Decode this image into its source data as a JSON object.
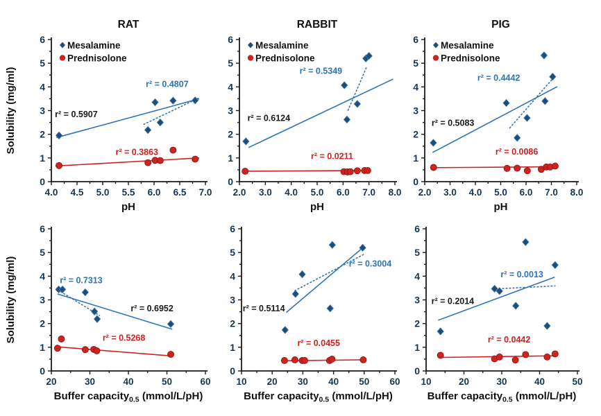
{
  "figure": {
    "background": "#ffffff",
    "axis_color": "#1a1a1a",
    "tick_label_color": "#17344e",
    "blue_line_color": "#2e75b6",
    "blue_marker_color": "#1d4e79",
    "red_line_color": "#cf2020",
    "red_marker_color": "#ce2420",
    "legend_items": [
      "Mesalamine",
      "Prednisolone"
    ],
    "row_ylabel": "Solubility (mg/ml)"
  },
  "chart_data": [
    {
      "type": "scatter",
      "title": "RAT",
      "xlabel": {
        "pre": "pH",
        "sub": "",
        "post": ""
      },
      "ylabel": "Solubility (mg/ml)",
      "xlim": [
        4.0,
        7.0
      ],
      "xtick_step": 0.5,
      "xminor_step": 0.25,
      "xtick_decimals": 1,
      "ylim": [
        0,
        6
      ],
      "ytick_step": 1,
      "yminor_step": 0.5,
      "legend": true,
      "grid": false,
      "series": [
        {
          "name": "Mesalamine",
          "marker": "diamond",
          "color": "#1d4e79",
          "points": [
            [
              4.15,
              1.95
            ],
            [
              5.88,
              2.18
            ],
            [
              6.02,
              3.35
            ],
            [
              6.12,
              2.5
            ],
            [
              6.37,
              3.42
            ],
            [
              6.8,
              3.43
            ]
          ]
        },
        {
          "name": "Prednisolone",
          "marker": "circle",
          "color": "#ce2420",
          "points": [
            [
              4.15,
              0.68
            ],
            [
              5.88,
              0.8
            ],
            [
              6.02,
              0.9
            ],
            [
              6.12,
              0.89
            ],
            [
              6.37,
              1.33
            ],
            [
              6.8,
              0.95
            ]
          ]
        }
      ],
      "trendlines": [
        {
          "label": "r² = 0.5907",
          "style": "solid",
          "color": "#2e75b6",
          "x1": 4.1,
          "y1": 1.86,
          "x2": 6.88,
          "y2": 3.5,
          "label_color": "#1a1a1a",
          "label_x": 4.07,
          "label_y": 2.72
        },
        {
          "label": "r² = 0.4807",
          "style": "dotted",
          "color": "#2e75b6",
          "x1": 5.8,
          "y1": 2.42,
          "x2": 6.86,
          "y2": 3.52,
          "label_color": "#2e75b6",
          "label_x": 5.84,
          "label_y": 4.0
        },
        {
          "label": "r² = 0.3863",
          "style": "solid",
          "color": "#cf2020",
          "x1": 4.08,
          "y1": 0.66,
          "x2": 6.88,
          "y2": 1.0,
          "label_color": "#cf2020",
          "label_x": 5.25,
          "label_y": 1.12
        }
      ]
    },
    {
      "type": "scatter",
      "title": "RABBIT",
      "xlabel": {
        "pre": "pH",
        "sub": "",
        "post": ""
      },
      "ylabel": "",
      "xlim": [
        2.0,
        8.0
      ],
      "xtick_step": 1.0,
      "xminor_step": 0.5,
      "xtick_decimals": 1,
      "ylim": [
        0,
        6
      ],
      "ytick_step": 1,
      "yminor_step": 0.5,
      "legend": true,
      "grid": false,
      "series": [
        {
          "name": "Mesalamine",
          "marker": "diamond",
          "color": "#1d4e79",
          "points": [
            [
              2.25,
              1.7
            ],
            [
              6.05,
              4.07
            ],
            [
              6.15,
              2.62
            ],
            [
              6.55,
              3.28
            ],
            [
              6.88,
              5.2
            ],
            [
              7.0,
              5.31
            ]
          ]
        },
        {
          "name": "Prednisolone",
          "marker": "circle",
          "color": "#ce2420",
          "points": [
            [
              2.22,
              0.44
            ],
            [
              6.03,
              0.42
            ],
            [
              6.17,
              0.41
            ],
            [
              6.28,
              0.42
            ],
            [
              6.55,
              0.46
            ],
            [
              6.83,
              0.47
            ],
            [
              6.95,
              0.47
            ]
          ]
        }
      ],
      "trendlines": [
        {
          "label": "r² = 0.6124",
          "style": "solid",
          "color": "#2e75b6",
          "x1": 2.35,
          "y1": 1.44,
          "x2": 7.93,
          "y2": 4.33,
          "label_color": "#1a1a1a",
          "label_x": 2.31,
          "label_y": 2.56
        },
        {
          "label": "r² = 0.5349",
          "style": "dotted",
          "color": "#2e75b6",
          "x1": 6.19,
          "y1": 3.01,
          "x2": 6.93,
          "y2": 4.89,
          "label_color": "#2e75b6",
          "label_x": 4.32,
          "label_y": 4.55
        },
        {
          "label": "r² = 0.0211",
          "style": "solid",
          "color": "#cf2020",
          "x1": 2.22,
          "y1": 0.44,
          "x2": 7.0,
          "y2": 0.47,
          "label_color": "#cf2020",
          "label_x": 4.76,
          "label_y": 0.95
        }
      ]
    },
    {
      "type": "scatter",
      "title": "PIG",
      "xlabel": {
        "pre": "pH",
        "sub": "",
        "post": ""
      },
      "ylabel": "",
      "xlim": [
        2.0,
        8.0
      ],
      "xtick_step": 1.0,
      "xminor_step": 0.5,
      "xtick_decimals": 1,
      "ylim": [
        0,
        6
      ],
      "ytick_step": 1,
      "yminor_step": 0.5,
      "legend": true,
      "grid": false,
      "series": [
        {
          "name": "Mesalamine",
          "marker": "diamond",
          "color": "#1d4e79",
          "points": [
            [
              2.34,
              1.64
            ],
            [
              5.22,
              3.32
            ],
            [
              5.65,
              1.85
            ],
            [
              6.04,
              2.69
            ],
            [
              6.71,
              5.33
            ],
            [
              6.75,
              3.4
            ],
            [
              7.05,
              4.43
            ]
          ]
        },
        {
          "name": "Prednisolone",
          "marker": "circle",
          "color": "#ce2420",
          "points": [
            [
              2.35,
              0.6
            ],
            [
              5.25,
              0.56
            ],
            [
              5.65,
              0.57
            ],
            [
              6.05,
              0.46
            ],
            [
              6.6,
              0.52
            ],
            [
              6.8,
              0.62
            ],
            [
              6.95,
              0.62
            ],
            [
              7.15,
              0.66
            ]
          ]
        }
      ],
      "trendlines": [
        {
          "label": "r² = 0.5083",
          "style": "solid",
          "color": "#2e75b6",
          "x1": 2.31,
          "y1": 1.23,
          "x2": 7.23,
          "y2": 4.01,
          "label_color": "#1a1a1a",
          "label_x": 2.27,
          "label_y": 2.36
        },
        {
          "label": "r² = 0.4442",
          "style": "dotted",
          "color": "#2e75b6",
          "x1": 5.36,
          "y1": 2.27,
          "x2": 7.07,
          "y2": 4.37,
          "label_color": "#2e75b6",
          "label_x": 4.08,
          "label_y": 4.26
        },
        {
          "label": "r² = 0.0086",
          "style": "solid",
          "color": "#cf2020",
          "x1": 2.35,
          "y1": 0.59,
          "x2": 7.15,
          "y2": 0.63,
          "label_color": "#cf2020",
          "label_x": 4.79,
          "label_y": 1.14
        }
      ]
    },
    {
      "type": "scatter",
      "title": "",
      "xlabel": {
        "pre": "Buffer capacity",
        "sub": "0.5",
        "post": " (mmol/L/pH)"
      },
      "ylabel": "Solubility (mg/ml)",
      "xlim": [
        20,
        60
      ],
      "xtick_step": 10,
      "xminor_step": 5,
      "xtick_decimals": 0,
      "ylim": [
        0,
        6
      ],
      "ytick_step": 1,
      "yminor_step": 0.5,
      "legend": false,
      "grid": false,
      "series": [
        {
          "name": "Mesalamine",
          "marker": "diamond",
          "color": "#1d4e79",
          "points": [
            [
              21.9,
              3.44
            ],
            [
              22.9,
              3.44
            ],
            [
              28.8,
              3.32
            ],
            [
              31.2,
              2.51
            ],
            [
              31.9,
              2.19
            ],
            [
              51.0,
              1.98
            ]
          ]
        },
        {
          "name": "Prednisolone",
          "marker": "circle",
          "color": "#ce2420",
          "points": [
            [
              21.6,
              0.96
            ],
            [
              22.6,
              1.35
            ],
            [
              28.8,
              0.9
            ],
            [
              31.0,
              0.91
            ],
            [
              31.8,
              0.85
            ],
            [
              51.0,
              0.7
            ]
          ]
        }
      ],
      "trendlines": [
        {
          "label": "r² = 0.6952",
          "style": "solid",
          "color": "#2e75b6",
          "x1": 21.6,
          "y1": 3.25,
          "x2": 51.4,
          "y2": 1.76,
          "label_color": "#1a1a1a",
          "label_x": 40.6,
          "label_y": 2.52
        },
        {
          "label": "r² = 0.7313",
          "style": "dotted",
          "color": "#2e75b6",
          "x1": 21.7,
          "y1": 3.42,
          "x2": 32.5,
          "y2": 2.34,
          "label_color": "#2e75b6",
          "label_x": 22.2,
          "label_y": 3.7
        },
        {
          "label": "r² = 0.5268",
          "style": "solid",
          "color": "#cf2020",
          "x1": 21.4,
          "y1": 1.02,
          "x2": 51.4,
          "y2": 0.63,
          "label_color": "#cf2020",
          "label_x": 33.3,
          "label_y": 1.28
        }
      ]
    },
    {
      "type": "scatter",
      "title": "",
      "xlabel": {
        "pre": "Buffer capacity",
        "sub": "0.5",
        "post": " (mmol/L/pH)"
      },
      "ylabel": "",
      "xlim": [
        10,
        60
      ],
      "xtick_step": 10,
      "xminor_step": 5,
      "xtick_decimals": 0,
      "ylim": [
        0,
        6
      ],
      "ytick_step": 1,
      "yminor_step": 0.5,
      "legend": false,
      "grid": false,
      "series": [
        {
          "name": "Mesalamine",
          "marker": "diamond",
          "color": "#1d4e79",
          "points": [
            [
              24.2,
              1.73
            ],
            [
              27.6,
              3.25
            ],
            [
              29.8,
              4.08
            ],
            [
              38.9,
              2.64
            ],
            [
              39.6,
              5.32
            ],
            [
              49.5,
              5.2
            ]
          ]
        },
        {
          "name": "Prednisolone",
          "marker": "circle",
          "color": "#ce2420",
          "points": [
            [
              24.0,
              0.44
            ],
            [
              27.4,
              0.47
            ],
            [
              29.8,
              0.44
            ],
            [
              30.6,
              0.44
            ],
            [
              38.7,
              0.44
            ],
            [
              39.5,
              0.5
            ],
            [
              49.7,
              0.47
            ]
          ]
        }
      ],
      "trendlines": [
        {
          "label": "r² = 0.5114",
          "style": "solid",
          "color": "#2e75b6",
          "x1": 24.6,
          "y1": 2.47,
          "x2": 49.7,
          "y2": 5.22,
          "label_color": "#1a1a1a",
          "label_x": 10.4,
          "label_y": 2.52
        },
        {
          "label": "r² = 0.3004",
          "style": "dotted",
          "color": "#2e75b6",
          "x1": 27.4,
          "y1": 3.39,
          "x2": 49.7,
          "y2": 4.91,
          "label_color": "#2e75b6",
          "label_x": 45.0,
          "label_y": 4.4
        },
        {
          "label": "r² = 0.0455",
          "style": "solid",
          "color": "#cf2020",
          "x1": 24.0,
          "y1": 0.43,
          "x2": 49.7,
          "y2": 0.47,
          "label_color": "#cf2020",
          "label_x": 28.2,
          "label_y": 1.06
        }
      ]
    },
    {
      "type": "scatter",
      "title": "",
      "xlabel": {
        "pre": "Buffer capacity",
        "sub": "0.5",
        "post": " (mmol/L/pH)"
      },
      "ylabel": "",
      "xlim": [
        10,
        50
      ],
      "xtick_step": 10,
      "xminor_step": 5,
      "xtick_decimals": 0,
      "ylim": [
        0,
        6
      ],
      "ytick_step": 1,
      "yminor_step": 0.5,
      "legend": false,
      "grid": false,
      "series": [
        {
          "name": "Mesalamine",
          "marker": "diamond",
          "color": "#1d4e79",
          "points": [
            [
              13.8,
              1.67
            ],
            [
              28.1,
              3.47
            ],
            [
              29.4,
              3.37
            ],
            [
              33.7,
              2.75
            ],
            [
              36.3,
              5.44
            ],
            [
              42.0,
              1.9
            ],
            [
              44.1,
              4.47
            ]
          ]
        },
        {
          "name": "Prednisolone",
          "marker": "circle",
          "color": "#ce2420",
          "points": [
            [
              13.8,
              0.66
            ],
            [
              28.1,
              0.51
            ],
            [
              29.4,
              0.59
            ],
            [
              33.6,
              0.46
            ],
            [
              36.3,
              0.69
            ],
            [
              42.0,
              0.59
            ],
            [
              44.1,
              0.72
            ]
          ]
        }
      ],
      "trendlines": [
        {
          "label": "r² = 0.2014",
          "style": "solid",
          "color": "#2e75b6",
          "x1": 13.2,
          "y1": 2.14,
          "x2": 44.0,
          "y2": 3.96,
          "label_color": "#1a1a1a",
          "label_x": 11.4,
          "label_y": 2.83
        },
        {
          "label": "r² = 0.0013",
          "style": "dotted",
          "color": "#2e75b6",
          "x1": 29.3,
          "y1": 3.47,
          "x2": 44.1,
          "y2": 3.59,
          "label_color": "#2e75b6",
          "label_x": 29.7,
          "label_y": 3.95
        },
        {
          "label": "r² = 0.0442",
          "style": "solid",
          "color": "#cf2020",
          "x1": 13.5,
          "y1": 0.57,
          "x2": 44.5,
          "y2": 0.64,
          "label_color": "#cf2020",
          "label_x": 26.3,
          "label_y": 1.2
        }
      ]
    }
  ]
}
